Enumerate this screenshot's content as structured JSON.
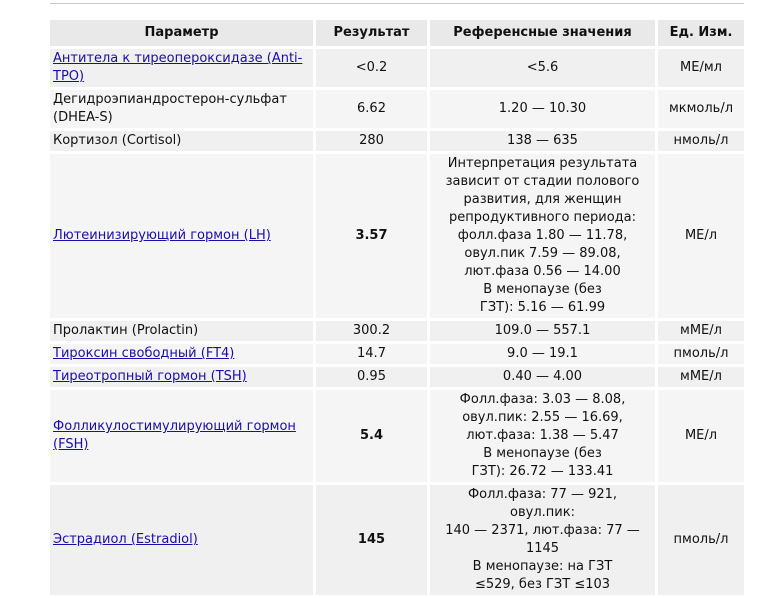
{
  "table": {
    "headers": [
      "Параметр",
      "Результат",
      "Референсные значения",
      "Ед. Изм."
    ],
    "rows": [
      {
        "name": "Антитела к тиреопероксидазе (Anti-TPO)",
        "link": true,
        "result": "<0.2",
        "bold": false,
        "ref": [
          "<5.6"
        ],
        "unit": "МЕ/мл"
      },
      {
        "name": "Дегидроэпиандростерон-сульфат (DHEA-S)",
        "link": false,
        "result": "6.62",
        "bold": false,
        "ref": [
          "1.20 — 10.30"
        ],
        "unit": "мкмоль/л"
      },
      {
        "name": "Кортизол (Cortisol)",
        "link": false,
        "result": "280",
        "bold": false,
        "ref": [
          "138 — 635"
        ],
        "unit": "нмоль/л"
      },
      {
        "name": "Лютеинизирующий гормон (LH)",
        "link": true,
        "result": "3.57",
        "bold": true,
        "ref": [
          "Интерпретация результата",
          "зависит от стадии полового",
          "развития, для женщин",
          "репродуктивного периода:",
          "фолл.фаза 1.80 — 11.78,",
          "овул.пик 7.59 — 89.08,",
          "лют.фаза 0.56 — 14.00",
          "В менопаузе (без",
          "ГЗТ): 5.16 — 61.99"
        ],
        "unit": "МЕ/л"
      },
      {
        "name": "Пролактин (Prolactin)",
        "link": false,
        "result": "300.2",
        "bold": false,
        "ref": [
          "109.0 — 557.1"
        ],
        "unit": "мМЕ/л"
      },
      {
        "name": "Тироксин свободный (FT4)",
        "link": true,
        "result": "14.7",
        "bold": false,
        "ref": [
          "9.0 — 19.1"
        ],
        "unit": "пмоль/л"
      },
      {
        "name": "Тиреотропный гормон (TSH)",
        "link": true,
        "result": "0.95",
        "bold": false,
        "ref": [
          "0.40 — 4.00"
        ],
        "unit": "мМЕ/л"
      },
      {
        "name": "Фолликулостимулирующий гормон (FSH)",
        "link": true,
        "result": "5.4",
        "bold": true,
        "ref": [
          "Фолл.фаза: 3.03 — 8.08,",
          "овул.пик: 2.55 — 16.69,",
          "лют.фаза: 1.38 — 5.47",
          "В менопаузе (без",
          "ГЗТ): 26.72 — 133.41"
        ],
        "unit": "МЕ/л"
      },
      {
        "name": "Эстрадиол (Estradiol)",
        "link": true,
        "result": "145",
        "bold": true,
        "ref": [
          "Фолл.фаза: 77 — 921, овул.пик:",
          "140 — 2371, лют.фаза: 77 — 1145",
          "В менопаузе: на ГЗТ",
          "≤529, без ГЗТ ≤103"
        ],
        "unit": "пмоль/л"
      }
    ]
  }
}
